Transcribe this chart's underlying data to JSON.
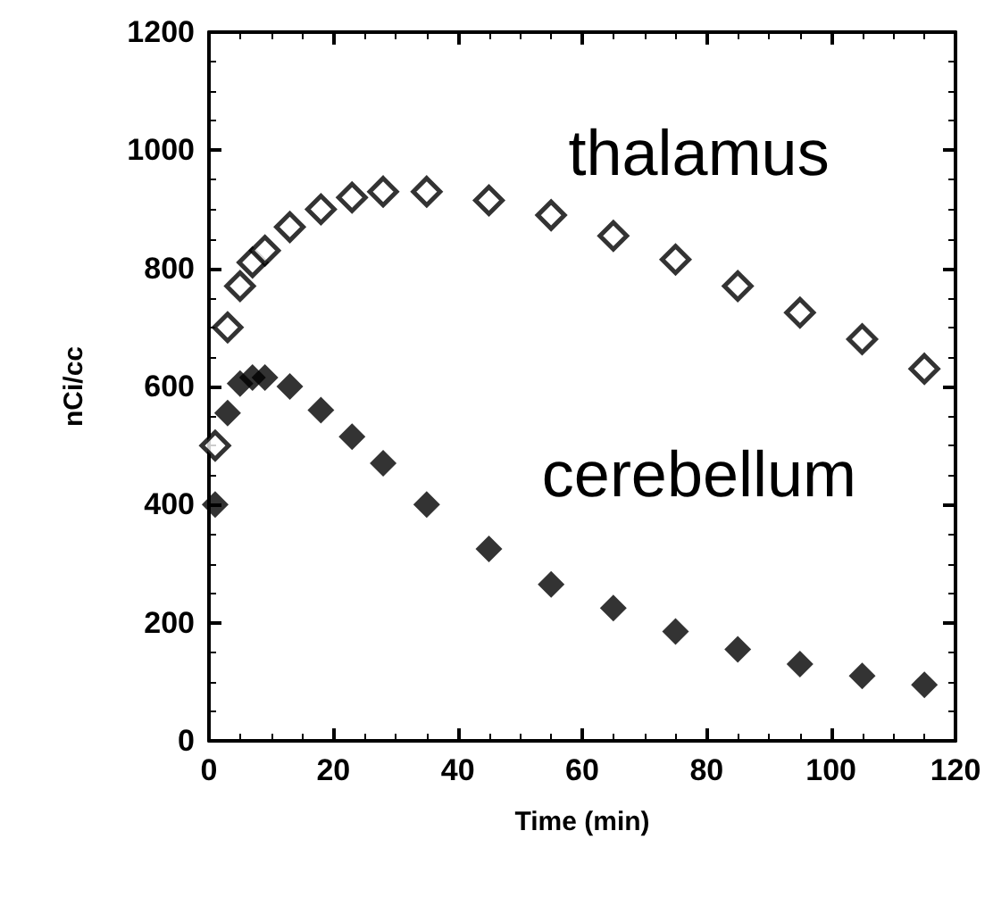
{
  "chart_data": {
    "type": "scatter",
    "xlabel": "Time (min)",
    "ylabel": "nCi/cc",
    "x": [
      1,
      3,
      5,
      7,
      9,
      13,
      18,
      23,
      28,
      35,
      45,
      55,
      65,
      75,
      85,
      95,
      105,
      115
    ],
    "series": [
      {
        "name": "thalamus",
        "color": "#000000",
        "values": [
          500,
          700,
          770,
          810,
          830,
          870,
          900,
          920,
          930,
          930,
          915,
          890,
          855,
          815,
          770,
          725,
          680,
          630
        ]
      },
      {
        "name": "cerebellum",
        "color": "#000000",
        "values": [
          400,
          555,
          605,
          615,
          615,
          600,
          560,
          515,
          470,
          400,
          325,
          265,
          225,
          185,
          155,
          130,
          110,
          95
        ]
      }
    ],
    "xlim": [
      0,
      120
    ],
    "xticks": [
      0,
      20,
      40,
      60,
      80,
      100,
      120
    ],
    "ylim": [
      0,
      1200
    ],
    "yticks": [
      0,
      200,
      400,
      600,
      800,
      1000,
      1200
    ],
    "grid": false,
    "legend": "right",
    "marker": "diamond"
  }
}
